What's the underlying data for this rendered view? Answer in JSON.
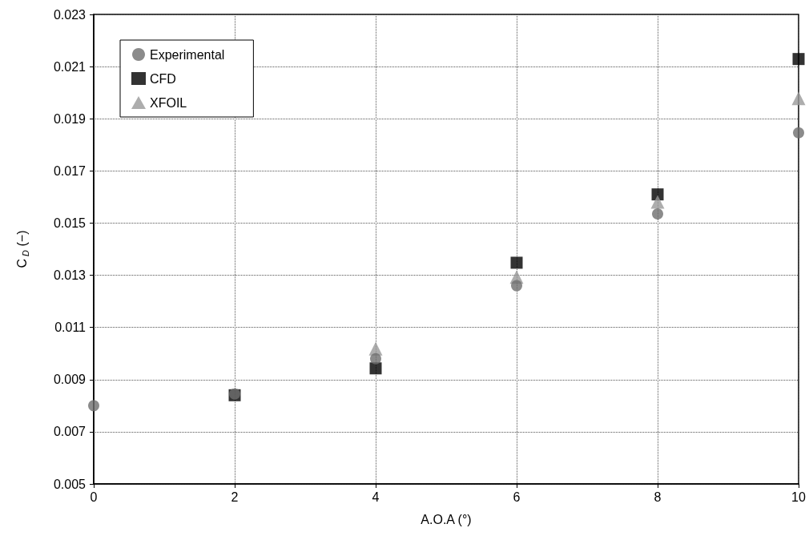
{
  "chart_data": {
    "type": "scatter",
    "xlabel": "A.O.A (°)",
    "ylabel": "C$_{D}$ (−)",
    "x": [
      0,
      2,
      4,
      6,
      8,
      10
    ],
    "series": [
      {
        "name": "Experimental",
        "color": "#6e6e6e",
        "marker": "circle",
        "values": [
          0.008,
          0.00845,
          0.0098,
          0.0126,
          0.01535,
          0.01846
        ]
      },
      {
        "name": "CFD",
        "color": "#000000",
        "marker": "square",
        "values": [
          null,
          0.0084,
          0.00943,
          0.01348,
          0.0161,
          0.02129
        ]
      },
      {
        "name": "XFOIL",
        "color": "#999999",
        "marker": "triangle",
        "values": [
          null,
          null,
          0.01018,
          0.01293,
          0.01581,
          0.01978
        ]
      }
    ],
    "xlim": [
      0,
      10
    ],
    "xticks": [
      0,
      2,
      4,
      6,
      8,
      10
    ],
    "ylim": [
      0.005,
      0.023
    ],
    "yticks": [
      0.005,
      0.007,
      0.009,
      0.011,
      0.013,
      0.015,
      0.017,
      0.019,
      0.021,
      0.023
    ],
    "grid": true,
    "legend": "top left"
  }
}
